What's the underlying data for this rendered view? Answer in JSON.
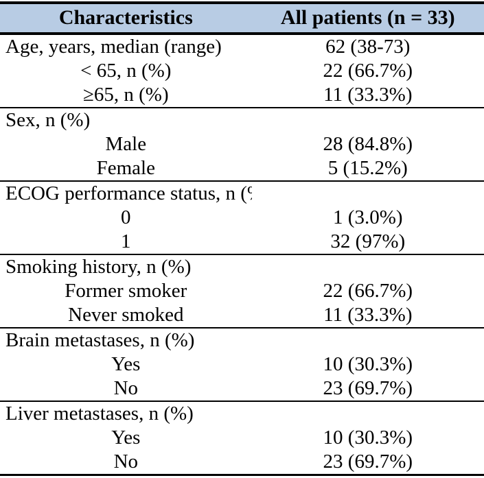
{
  "colors": {
    "header_bg": "#b8cce4",
    "border": "#000000",
    "text": "#000000",
    "page_bg": "#ffffff"
  },
  "table": {
    "header": {
      "characteristics": "Characteristics",
      "all_patients": "All patients (n = 33)"
    },
    "sections": [
      {
        "rows": [
          {
            "label": "Age, years, median (range)",
            "value": "62 (38-73)"
          },
          {
            "label": "< 65, n (%)",
            "value": "22 (66.7%)"
          },
          {
            "label": "≥65, n (%)",
            "value": "11 (33.3%)"
          }
        ]
      },
      {
        "rows": [
          {
            "label": "Sex, n (%)",
            "value": ""
          },
          {
            "label": "Male",
            "value": "28 (84.8%)"
          },
          {
            "label": "Female",
            "value": "5 (15.2%)"
          }
        ]
      },
      {
        "rows": [
          {
            "label": "ECOG performance status, n (%)",
            "value": ""
          },
          {
            "label": "0",
            "value": "1 (3.0%)"
          },
          {
            "label": "1",
            "value": "32 (97%)"
          }
        ]
      },
      {
        "rows": [
          {
            "label": "Smoking history, n (%)",
            "value": ""
          },
          {
            "label": "Former smoker",
            "value": "22 (66.7%)"
          },
          {
            "label": "Never smoked",
            "value": "11 (33.3%)"
          }
        ]
      },
      {
        "rows": [
          {
            "label": "Brain metastases, n (%)",
            "value": ""
          },
          {
            "label": "Yes",
            "value": "10 (30.3%)"
          },
          {
            "label": "No",
            "value": "23 (69.7%)"
          }
        ]
      },
      {
        "rows": [
          {
            "label": "Liver metastases, n (%)",
            "value": ""
          },
          {
            "label": "Yes",
            "value": "10 (30.3%)"
          },
          {
            "label": "No",
            "value": "23 (69.7%)"
          }
        ]
      }
    ]
  }
}
